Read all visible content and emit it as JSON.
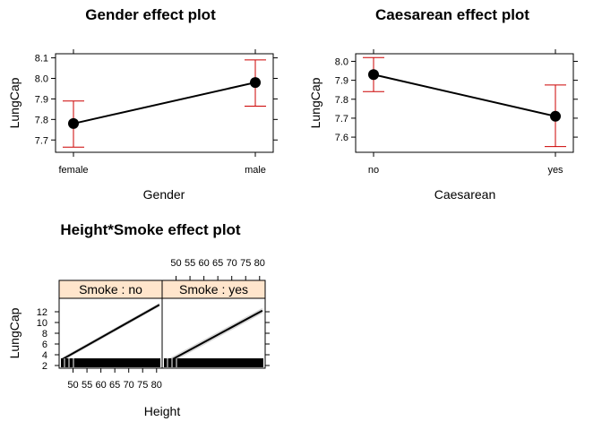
{
  "chart_data": [
    {
      "type": "line",
      "title": "Gender effect plot",
      "xlabel": "Gender",
      "ylabel": "LungCap",
      "categories": [
        "female",
        "male"
      ],
      "values": [
        7.78,
        7.98
      ],
      "ci_lower": [
        7.665,
        7.865
      ],
      "ci_upper": [
        7.89,
        8.09
      ],
      "yticks": [
        "7.7",
        "7.8",
        "7.9",
        "8.0",
        "8.1"
      ],
      "ylim": [
        7.64,
        8.12
      ],
      "line_color": "#000000",
      "ci_color": "#cc0000"
    },
    {
      "type": "line",
      "title": "Caesarean effect plot",
      "xlabel": "Caesarean",
      "ylabel": "LungCap",
      "categories": [
        "no",
        "yes"
      ],
      "values": [
        7.93,
        7.71
      ],
      "ci_lower": [
        7.84,
        7.55
      ],
      "ci_upper": [
        8.02,
        7.875
      ],
      "yticks": [
        "7.6",
        "7.7",
        "7.8",
        "7.9",
        "8.0"
      ],
      "ylim": [
        7.52,
        8.04
      ],
      "line_color": "#000000",
      "ci_color": "#cc0000"
    },
    {
      "type": "line",
      "title": "Height*Smoke effect plot",
      "xlabel": "Height",
      "ylabel": "LungCap",
      "panels": [
        {
          "strip": "Smoke : no",
          "x": [
            46,
            81
          ],
          "y": [
            3.1,
            13.3
          ]
        },
        {
          "strip": "Smoke : yes",
          "x": [
            46,
            81
          ],
          "y": [
            2.4,
            12.2
          ]
        }
      ],
      "xticks": [
        "50",
        "55",
        "60",
        "65",
        "70",
        "75",
        "80"
      ],
      "yticks": [
        "2",
        "4",
        "6",
        "8",
        "10",
        "12"
      ],
      "xlim": [
        45,
        82
      ],
      "ylim": [
        1.5,
        14.5
      ],
      "strip_color": "#ffe5cc",
      "band_color": "#bbbbbb",
      "line_color": "#000000"
    }
  ]
}
